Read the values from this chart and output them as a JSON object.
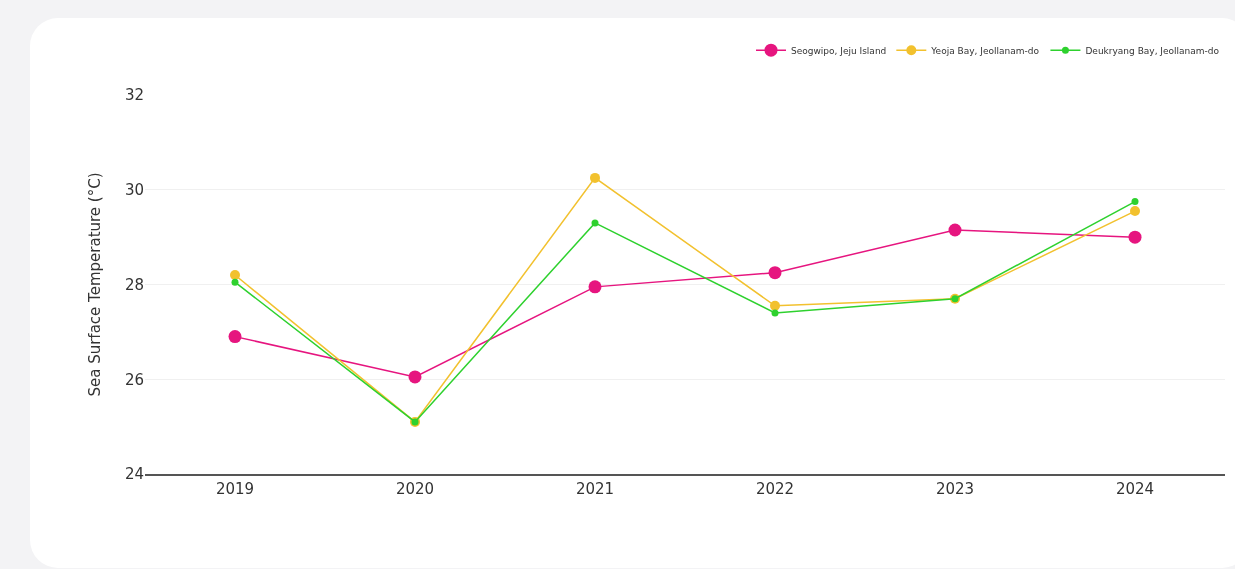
{
  "chart_data": {
    "type": "line",
    "ylabel": "Sea Surface Temperature (°C)",
    "categories": [
      "2019",
      "2020",
      "2021",
      "2022",
      "2023",
      "2024"
    ],
    "series": [
      {
        "name": "Seogwipo, Jeju Island",
        "color": "#e6157f",
        "values": [
          26.9,
          26.05,
          27.95,
          28.25,
          29.15,
          29.0
        ]
      },
      {
        "name": "Yeoja Bay, Jeollanam-do",
        "color": "#f2c12e",
        "values": [
          28.2,
          25.1,
          30.25,
          27.55,
          27.7,
          29.55
        ]
      },
      {
        "name": "Deukryang Bay, Jeollanam-do",
        "color": "#2ed12e",
        "values": [
          28.05,
          25.1,
          29.3,
          27.4,
          27.7,
          29.75
        ]
      }
    ],
    "ylim": [
      24,
      32
    ],
    "yticks": [
      24,
      26,
      28,
      30,
      32
    ],
    "grid": "y",
    "legend": "top right",
    "marker": "circle",
    "line_style": "solid"
  }
}
